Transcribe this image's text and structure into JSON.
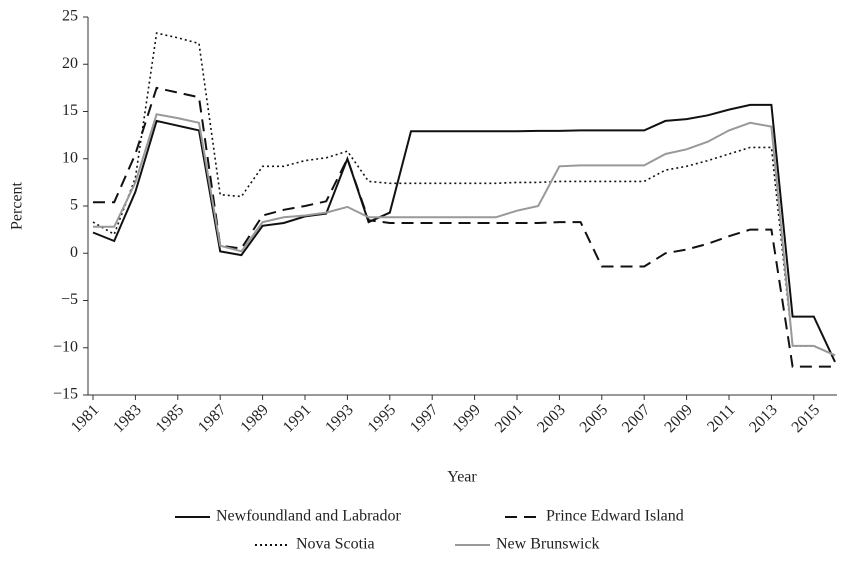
{
  "chart_data": {
    "type": "line",
    "x_label": "Year",
    "y_label": "Percent",
    "x": [
      1981,
      1982,
      1983,
      1984,
      1985,
      1986,
      1987,
      1988,
      1989,
      1990,
      1991,
      1992,
      1993,
      1994,
      1995,
      1996,
      1997,
      1998,
      1999,
      2000,
      2001,
      2002,
      2003,
      2004,
      2005,
      2006,
      2007,
      2008,
      2009,
      2010,
      2011,
      2012,
      2013,
      2014,
      2015,
      2016
    ],
    "xlim": [
      1981,
      2016
    ],
    "xticks": [
      1981,
      1983,
      1985,
      1987,
      1989,
      1991,
      1993,
      1995,
      1997,
      1999,
      2001,
      2003,
      2005,
      2007,
      2009,
      2011,
      2013,
      2015
    ],
    "ylim": [
      -15,
      25
    ],
    "yticks": [
      {
        "value": -15,
        "label": "−15"
      },
      {
        "value": -10,
        "label": "−10"
      },
      {
        "value": -5,
        "label": "−5"
      },
      0,
      5,
      10,
      15,
      20,
      25
    ],
    "grid": false,
    "legend": "bottom",
    "series": [
      {
        "name": "Newfoundland and Labrador",
        "color": "#111111",
        "dash": "solid",
        "values": [
          2.2,
          1.3,
          6.5,
          14,
          13.5,
          13,
          0.2,
          -0.2,
          2.9,
          3.2,
          3.9,
          4.2,
          10,
          3.3,
          4.3,
          12.9,
          12.9,
          12.9,
          12.9,
          12.9,
          12.9,
          12.95,
          12.95,
          13,
          13,
          13,
          13,
          14,
          14.2,
          14.6,
          15.2,
          15.7,
          15.7,
          -6.7,
          -6.7,
          -11.5
        ]
      },
      {
        "name": "Prince Edward Island",
        "color": "#111111",
        "dash": "dashed",
        "values": [
          5.4,
          5.4,
          10.5,
          17.5,
          17,
          16.5,
          0.8,
          0.5,
          4,
          4.6,
          5,
          5.5,
          10,
          3.5,
          3.2,
          3.2,
          3.2,
          3.2,
          3.2,
          3.2,
          3.2,
          3.2,
          3.3,
          3.3,
          -1.4,
          -1.4,
          -1.4,
          0,
          0.4,
          1,
          1.8,
          2.5,
          2.5,
          -12,
          -12,
          -12
        ]
      },
      {
        "name": "Nova Scotia",
        "color": "#111111",
        "dash": "dotted",
        "values": [
          3.3,
          2,
          8,
          23.3,
          22.8,
          22.2,
          6.2,
          6,
          9.2,
          9.2,
          9.8,
          10.1,
          10.8,
          7.6,
          7.4,
          7.4,
          7.4,
          7.4,
          7.4,
          7.4,
          7.5,
          7.5,
          7.6,
          7.6,
          7.6,
          7.6,
          7.6,
          8.8,
          9.2,
          9.8,
          10.5,
          11.2,
          11.2,
          -9.8,
          -9.8,
          -10.8
        ]
      },
      {
        "name": "New Brunswick",
        "color": "#999999",
        "dash": "solid",
        "values": [
          2.8,
          2.8,
          7.5,
          14.7,
          14.3,
          13.8,
          0.8,
          0.2,
          3.3,
          3.8,
          4,
          4.3,
          4.9,
          3.8,
          3.8,
          3.8,
          3.8,
          3.8,
          3.8,
          3.8,
          4.5,
          5,
          9.2,
          9.3,
          9.3,
          9.3,
          9.3,
          10.5,
          11,
          11.8,
          13,
          13.8,
          13.4,
          -9.8,
          -9.8,
          -10.8
        ]
      }
    ]
  }
}
